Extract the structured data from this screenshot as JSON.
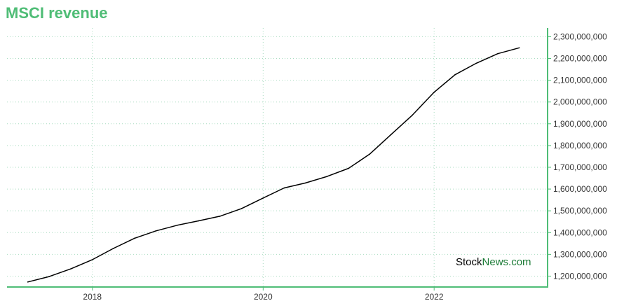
{
  "chart_data": {
    "type": "line",
    "title": "MSCI revenue",
    "xlabel": "",
    "ylabel": "",
    "x_ticks": [
      "2018",
      "2020",
      "2022"
    ],
    "y_ticks": [
      1200000000,
      1300000000,
      1400000000,
      1500000000,
      1600000000,
      1700000000,
      1800000000,
      1900000000,
      2000000000,
      2100000000,
      2200000000,
      2300000000
    ],
    "y_tick_labels": [
      "1,200,000,000",
      "1,300,000,000",
      "1,400,000,000",
      "1,500,000,000",
      "1,600,000,000",
      "1,700,000,000",
      "1,800,000,000",
      "1,900,000,000",
      "2,000,000,000",
      "2,100,000,000",
      "2,200,000,000",
      "2,300,000,000"
    ],
    "ylim": [
      1150000000,
      2340000000
    ],
    "xlim": [
      "2017-01-01",
      "2023-05-01"
    ],
    "grid": true,
    "y_axis_position": "right",
    "series": [
      {
        "color": "#000000",
        "x": [
          "2017-03-31",
          "2017-06-30",
          "2017-09-30",
          "2017-12-31",
          "2018-03-31",
          "2018-06-30",
          "2018-09-30",
          "2018-12-31",
          "2019-03-31",
          "2019-06-30",
          "2019-09-30",
          "2019-12-31",
          "2020-03-31",
          "2020-06-30",
          "2020-09-30",
          "2020-12-31",
          "2021-03-31",
          "2021-06-30",
          "2021-09-30",
          "2021-12-31",
          "2022-03-31",
          "2022-06-30",
          "2022-09-30",
          "2022-12-31"
        ],
        "values": [
          1173000000,
          1198000000,
          1233000000,
          1275000000,
          1327000000,
          1374000000,
          1408000000,
          1434000000,
          1454000000,
          1475000000,
          1510000000,
          1558000000,
          1605000000,
          1628000000,
          1658000000,
          1695000000,
          1760000000,
          1850000000,
          1940000000,
          2044000000,
          2125000000,
          2178000000,
          2222000000,
          2249000000
        ]
      }
    ]
  },
  "colors": {
    "accent": "#4fbd76",
    "grid": "#a9dcc0",
    "line": "#000000",
    "watermark_dark": "#000000",
    "watermark_green": "#1a7a35"
  },
  "watermark": {
    "part1": "Stock",
    "part2": "News.com"
  }
}
